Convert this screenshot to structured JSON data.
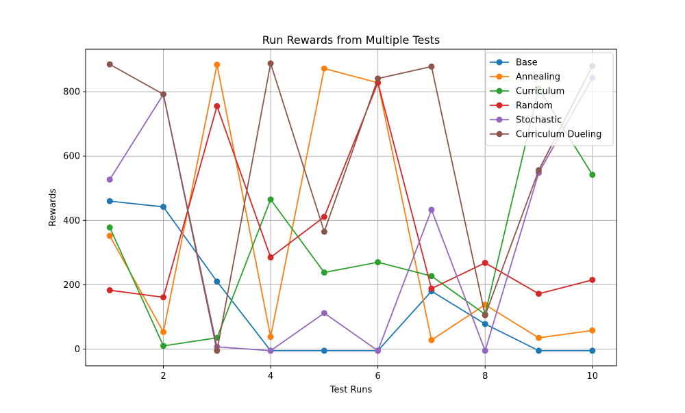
{
  "chart_data": {
    "type": "line",
    "title": "Run Rewards from Multiple Tests",
    "xlabel": "Test Runs",
    "ylabel": "Rewards",
    "xlim": [
      0.55,
      10.45
    ],
    "ylim": [
      -52,
      932
    ],
    "xticks": [
      2,
      4,
      6,
      8,
      10
    ],
    "yticks": [
      0,
      200,
      400,
      600,
      800
    ],
    "grid": true,
    "legend_position": "top-right",
    "x": [
      1,
      2,
      3,
      4,
      5,
      6,
      7,
      8,
      9,
      10
    ],
    "series": [
      {
        "name": "Base",
        "color": "#1f77b4",
        "values": [
          460,
          442,
          210,
          -5,
          -5,
          -5,
          180,
          78,
          -5,
          -5
        ]
      },
      {
        "name": "Annealing",
        "color": "#ff7f0e",
        "values": [
          352,
          53,
          884,
          38,
          872,
          828,
          28,
          138,
          35,
          58
        ]
      },
      {
        "name": "Curriculum",
        "color": "#2ca02c",
        "values": [
          378,
          10,
          35,
          465,
          238,
          270,
          227,
          108,
          810,
          542
        ]
      },
      {
        "name": "Random",
        "color": "#d62728",
        "values": [
          183,
          161,
          755,
          285,
          411,
          828,
          188,
          268,
          172,
          215
        ]
      },
      {
        "name": "Stochastic",
        "color": "#9467bd",
        "values": [
          527,
          792,
          7,
          -5,
          112,
          -5,
          433,
          -5,
          548,
          843
        ]
      },
      {
        "name": "Curriculum Dueling",
        "color": "#8c564b",
        "values": [
          885,
          792,
          -5,
          888,
          365,
          841,
          878,
          105,
          556,
          880
        ]
      }
    ]
  }
}
